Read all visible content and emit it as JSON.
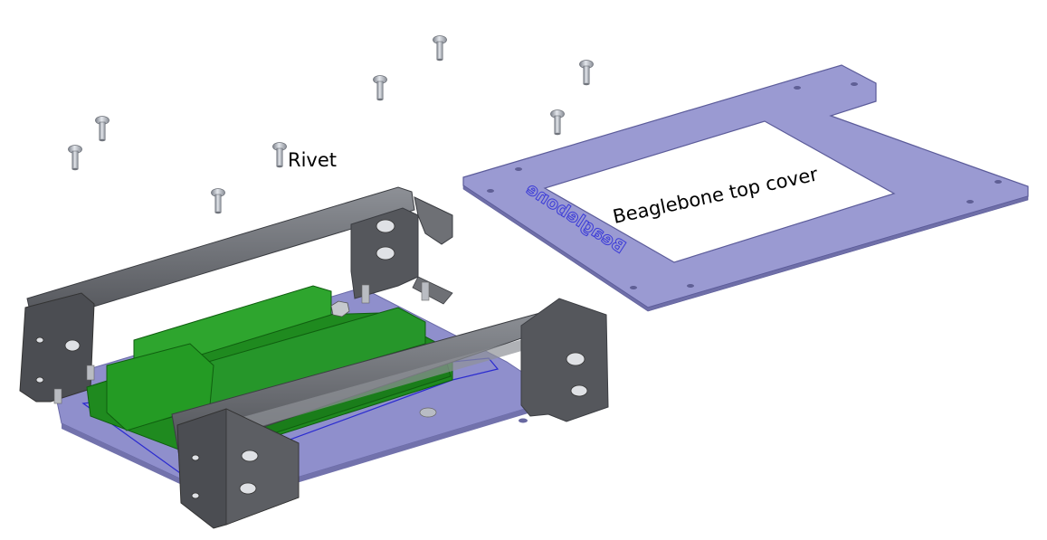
{
  "labels": {
    "rivet": "Rivet",
    "top_cover": "Beaglebone top cover",
    "engraving": "Beaglebone"
  },
  "colors": {
    "cover_fill": "#9a9ad2",
    "cover_edge": "#5c5c9a",
    "frame_dark": "#4b4d52",
    "frame_mid": "#6e7075",
    "frame_light": "#a3a5aa",
    "board_green": "#1f8a1f",
    "board_dark": "#0f5e0f",
    "base_plate": "#8f8fcc",
    "outline_blue": "#2a2ad0",
    "rivet_metal": "#b8bcc4",
    "engrave_blue": "#3a3ad8"
  },
  "parts": [
    {
      "name": "rivet",
      "count": 9
    },
    {
      "name": "beaglebone-top-cover",
      "count": 1
    },
    {
      "name": "side-frame",
      "count": 2
    },
    {
      "name": "beaglebone-board",
      "count": 1
    },
    {
      "name": "base-plate",
      "count": 1
    }
  ]
}
